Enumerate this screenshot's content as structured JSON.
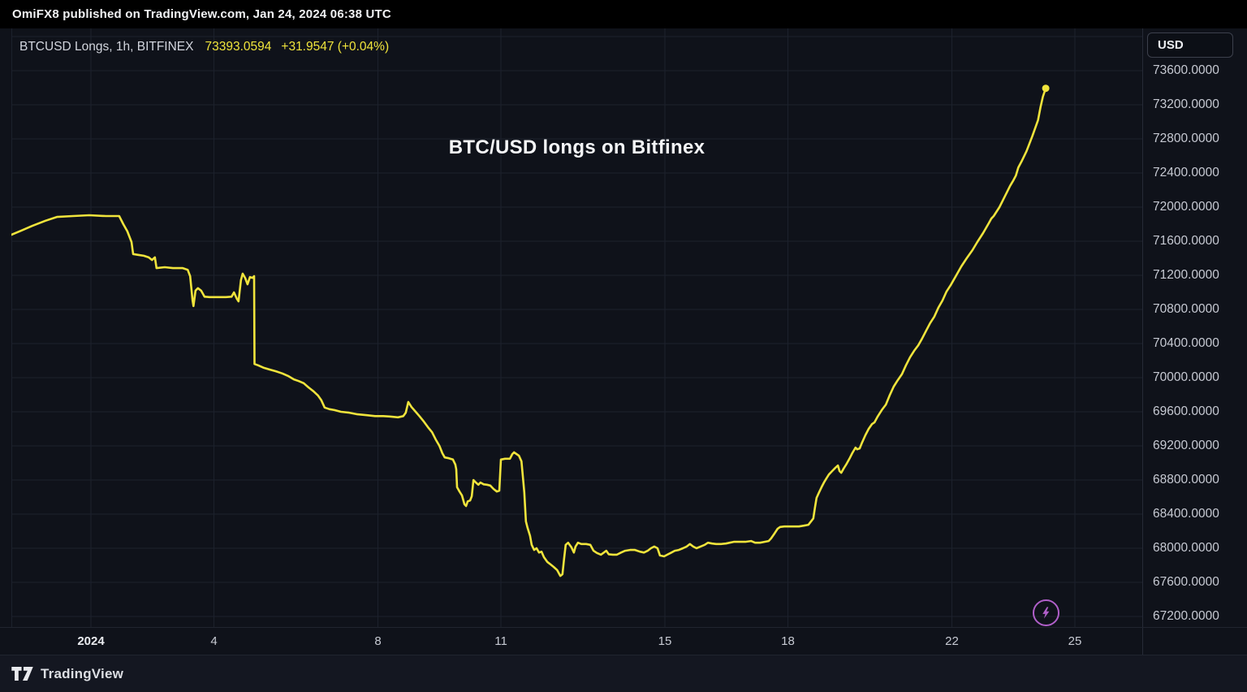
{
  "attribution_bar": {
    "text": "OmiFX8 published on TradingView.com, Jan 24, 2024 06:38 UTC"
  },
  "chart_header": {
    "symbol": "BTCUSD Longs, 1h, BITFINEX",
    "last_price": "73393.0594",
    "change": "+31.9547 (+0.04%)"
  },
  "annotation_title": "BTC/USD longs on Bitfinex",
  "price_axis": {
    "currency_label": "USD"
  },
  "footer": {
    "brand": "TradingView"
  },
  "colors": {
    "series": "#f0e43c",
    "accent_purple": "#b05fc9",
    "background": "#0f121a",
    "grid": "#1c212c",
    "axis_text": "#c7cad3",
    "topbar_bg": "#000000"
  },
  "chart_data": {
    "type": "line",
    "title": "BTC/USD longs on Bitfinex",
    "series_name": "BTCUSD Longs, 1h, BITFINEX",
    "color": "#f0e43c",
    "x_unit": "day of January 2024 (fractional; values < 1 are late Dec 2023)",
    "xlim": [
      -0.94,
      26.64
    ],
    "ylim": [
      67075,
      74095
    ],
    "grid": true,
    "legend": "none",
    "last_value": 73393.0594,
    "x_ticks": [
      {
        "label": "2024",
        "day": 1,
        "em": true
      },
      {
        "label": "4",
        "day": 4
      },
      {
        "label": "8",
        "day": 8
      },
      {
        "label": "11",
        "day": 11
      },
      {
        "label": "15",
        "day": 15
      },
      {
        "label": "18",
        "day": 18
      },
      {
        "label": "22",
        "day": 22
      },
      {
        "label": "25",
        "day": 25
      }
    ],
    "y_axis": {
      "tick_values": [
        73600,
        73200,
        72800,
        72400,
        72000,
        71600,
        71200,
        70800,
        70400,
        70000,
        69600,
        69200,
        68800,
        68400,
        68000,
        67600,
        67200
      ],
      "grid_extra": [
        74000
      ],
      "decimals": 4
    },
    "points": [
      [
        -0.94,
        71675
      ],
      [
        -0.7,
        71725
      ],
      [
        -0.43,
        71780
      ],
      [
        -0.11,
        71840
      ],
      [
        0.17,
        71885
      ],
      [
        0.56,
        71895
      ],
      [
        0.96,
        71905
      ],
      [
        1.36,
        71895
      ],
      [
        1.69,
        71895
      ],
      [
        1.79,
        71800
      ],
      [
        1.89,
        71715
      ],
      [
        1.99,
        71590
      ],
      [
        2.03,
        71450
      ],
      [
        2.15,
        71440
      ],
      [
        2.29,
        71430
      ],
      [
        2.41,
        71410
      ],
      [
        2.49,
        71380
      ],
      [
        2.56,
        71410
      ],
      [
        2.6,
        71285
      ],
      [
        2.8,
        71295
      ],
      [
        3.0,
        71285
      ],
      [
        3.24,
        71285
      ],
      [
        3.36,
        71265
      ],
      [
        3.42,
        71190
      ],
      [
        3.48,
        70905
      ],
      [
        3.5,
        70840
      ],
      [
        3.55,
        71020
      ],
      [
        3.61,
        71050
      ],
      [
        3.69,
        71020
      ],
      [
        3.77,
        70950
      ],
      [
        3.89,
        70945
      ],
      [
        4.09,
        70945
      ],
      [
        4.29,
        70945
      ],
      [
        4.43,
        70950
      ],
      [
        4.49,
        71000
      ],
      [
        4.56,
        70925
      ],
      [
        4.6,
        70895
      ],
      [
        4.66,
        71145
      ],
      [
        4.7,
        71220
      ],
      [
        4.76,
        71170
      ],
      [
        4.82,
        71095
      ],
      [
        4.88,
        71180
      ],
      [
        4.94,
        71170
      ],
      [
        4.98,
        71190
      ],
      [
        4.99,
        70160
      ],
      [
        5.08,
        70145
      ],
      [
        5.22,
        70115
      ],
      [
        5.36,
        70095
      ],
      [
        5.51,
        70075
      ],
      [
        5.67,
        70050
      ],
      [
        5.81,
        70020
      ],
      [
        5.95,
        69980
      ],
      [
        6.07,
        69960
      ],
      [
        6.19,
        69935
      ],
      [
        6.31,
        69885
      ],
      [
        6.43,
        69840
      ],
      [
        6.54,
        69790
      ],
      [
        6.62,
        69735
      ],
      [
        6.7,
        69650
      ],
      [
        6.82,
        69630
      ],
      [
        6.94,
        69620
      ],
      [
        7.1,
        69600
      ],
      [
        7.3,
        69590
      ],
      [
        7.5,
        69570
      ],
      [
        7.73,
        69560
      ],
      [
        7.93,
        69550
      ],
      [
        8.13,
        69550
      ],
      [
        8.29,
        69545
      ],
      [
        8.49,
        69535
      ],
      [
        8.62,
        69550
      ],
      [
        8.68,
        69590
      ],
      [
        8.74,
        69715
      ],
      [
        8.82,
        69655
      ],
      [
        8.92,
        69600
      ],
      [
        9.02,
        69545
      ],
      [
        9.12,
        69485
      ],
      [
        9.22,
        69420
      ],
      [
        9.32,
        69360
      ],
      [
        9.41,
        69275
      ],
      [
        9.5,
        69200
      ],
      [
        9.57,
        69115
      ],
      [
        9.63,
        69065
      ],
      [
        9.73,
        69055
      ],
      [
        9.83,
        69040
      ],
      [
        9.89,
        68980
      ],
      [
        9.91,
        68925
      ],
      [
        9.93,
        68715
      ],
      [
        9.99,
        68665
      ],
      [
        10.05,
        68620
      ],
      [
        10.11,
        68515
      ],
      [
        10.15,
        68495
      ],
      [
        10.19,
        68550
      ],
      [
        10.25,
        68560
      ],
      [
        10.29,
        68610
      ],
      [
        10.33,
        68800
      ],
      [
        10.39,
        68770
      ],
      [
        10.45,
        68745
      ],
      [
        10.5,
        68770
      ],
      [
        10.58,
        68750
      ],
      [
        10.66,
        68745
      ],
      [
        10.74,
        68735
      ],
      [
        10.82,
        68695
      ],
      [
        10.9,
        68665
      ],
      [
        10.96,
        68675
      ],
      [
        11.0,
        69040
      ],
      [
        11.1,
        69050
      ],
      [
        11.22,
        69050
      ],
      [
        11.28,
        69105
      ],
      [
        11.32,
        69125
      ],
      [
        11.38,
        69105
      ],
      [
        11.44,
        69085
      ],
      [
        11.5,
        69020
      ],
      [
        11.53,
        68865
      ],
      [
        11.57,
        68655
      ],
      [
        11.61,
        68315
      ],
      [
        11.65,
        68240
      ],
      [
        11.71,
        68145
      ],
      [
        11.75,
        68040
      ],
      [
        11.81,
        67980
      ],
      [
        11.87,
        68000
      ],
      [
        11.93,
        67950
      ],
      [
        11.99,
        67960
      ],
      [
        12.05,
        67895
      ],
      [
        12.13,
        67840
      ],
      [
        12.21,
        67810
      ],
      [
        12.29,
        67780
      ],
      [
        12.37,
        67745
      ],
      [
        12.45,
        67675
      ],
      [
        12.5,
        67695
      ],
      [
        12.54,
        67875
      ],
      [
        12.58,
        68040
      ],
      [
        12.64,
        68065
      ],
      [
        12.72,
        68010
      ],
      [
        12.78,
        67950
      ],
      [
        12.82,
        68020
      ],
      [
        12.88,
        68065
      ],
      [
        12.96,
        68050
      ],
      [
        13.08,
        68050
      ],
      [
        13.18,
        68040
      ],
      [
        13.26,
        67970
      ],
      [
        13.34,
        67945
      ],
      [
        13.44,
        67925
      ],
      [
        13.51,
        67950
      ],
      [
        13.57,
        67970
      ],
      [
        13.63,
        67930
      ],
      [
        13.73,
        67925
      ],
      [
        13.83,
        67925
      ],
      [
        13.93,
        67950
      ],
      [
        14.03,
        67970
      ],
      [
        14.15,
        67980
      ],
      [
        14.27,
        67980
      ],
      [
        14.39,
        67960
      ],
      [
        14.49,
        67950
      ],
      [
        14.58,
        67970
      ],
      [
        14.66,
        68000
      ],
      [
        14.74,
        68020
      ],
      [
        14.82,
        68000
      ],
      [
        14.88,
        67915
      ],
      [
        14.98,
        67905
      ],
      [
        15.06,
        67925
      ],
      [
        15.14,
        67945
      ],
      [
        15.24,
        67970
      ],
      [
        15.34,
        67980
      ],
      [
        15.44,
        68000
      ],
      [
        15.53,
        68020
      ],
      [
        15.61,
        68050
      ],
      [
        15.69,
        68020
      ],
      [
        15.77,
        68000
      ],
      [
        15.87,
        68020
      ],
      [
        15.97,
        68040
      ],
      [
        16.05,
        68065
      ],
      [
        16.15,
        68055
      ],
      [
        16.25,
        68050
      ],
      [
        16.37,
        68050
      ],
      [
        16.49,
        68055
      ],
      [
        16.58,
        68065
      ],
      [
        16.68,
        68075
      ],
      [
        16.82,
        68075
      ],
      [
        16.96,
        68075
      ],
      [
        17.1,
        68085
      ],
      [
        17.2,
        68065
      ],
      [
        17.32,
        68065
      ],
      [
        17.43,
        68075
      ],
      [
        17.53,
        68085
      ],
      [
        17.59,
        68115
      ],
      [
        17.67,
        68170
      ],
      [
        17.75,
        68230
      ],
      [
        17.81,
        68250
      ],
      [
        17.91,
        68255
      ],
      [
        18.03,
        68255
      ],
      [
        18.15,
        68255
      ],
      [
        18.27,
        68255
      ],
      [
        18.39,
        68265
      ],
      [
        18.5,
        68275
      ],
      [
        18.58,
        68325
      ],
      [
        18.62,
        68350
      ],
      [
        18.66,
        68475
      ],
      [
        18.7,
        68590
      ],
      [
        18.76,
        68655
      ],
      [
        18.82,
        68715
      ],
      [
        18.88,
        68770
      ],
      [
        18.94,
        68820
      ],
      [
        19.0,
        68865
      ],
      [
        19.08,
        68905
      ],
      [
        19.16,
        68945
      ],
      [
        19.22,
        68970
      ],
      [
        19.26,
        68905
      ],
      [
        19.3,
        68885
      ],
      [
        19.36,
        68935
      ],
      [
        19.42,
        68980
      ],
      [
        19.5,
        69050
      ],
      [
        19.57,
        69115
      ],
      [
        19.65,
        69180
      ],
      [
        19.69,
        69160
      ],
      [
        19.75,
        69170
      ],
      [
        19.81,
        69240
      ],
      [
        19.89,
        69325
      ],
      [
        19.97,
        69400
      ],
      [
        20.05,
        69455
      ],
      [
        20.11,
        69475
      ],
      [
        20.19,
        69545
      ],
      [
        20.29,
        69620
      ],
      [
        20.39,
        69685
      ],
      [
        20.48,
        69790
      ],
      [
        20.58,
        69895
      ],
      [
        20.68,
        69970
      ],
      [
        20.78,
        70040
      ],
      [
        20.88,
        70145
      ],
      [
        20.98,
        70240
      ],
      [
        21.08,
        70315
      ],
      [
        21.18,
        70380
      ],
      [
        21.27,
        70455
      ],
      [
        21.37,
        70550
      ],
      [
        21.47,
        70640
      ],
      [
        21.57,
        70715
      ],
      [
        21.67,
        70820
      ],
      [
        21.77,
        70905
      ],
      [
        21.87,
        71010
      ],
      [
        21.97,
        71085
      ],
      [
        22.03,
        71135
      ],
      [
        22.13,
        71220
      ],
      [
        22.23,
        71305
      ],
      [
        22.36,
        71400
      ],
      [
        22.5,
        71495
      ],
      [
        22.62,
        71590
      ],
      [
        22.76,
        71695
      ],
      [
        22.9,
        71810
      ],
      [
        22.96,
        71865
      ],
      [
        23.02,
        71895
      ],
      [
        23.16,
        72000
      ],
      [
        23.3,
        72135
      ],
      [
        23.42,
        72250
      ],
      [
        23.5,
        72315
      ],
      [
        23.56,
        72370
      ],
      [
        23.62,
        72465
      ],
      [
        23.7,
        72535
      ],
      [
        23.82,
        72655
      ],
      [
        23.96,
        72830
      ],
      [
        24.1,
        73020
      ],
      [
        24.16,
        73170
      ],
      [
        24.22,
        73295
      ],
      [
        24.29,
        73393
      ]
    ]
  }
}
